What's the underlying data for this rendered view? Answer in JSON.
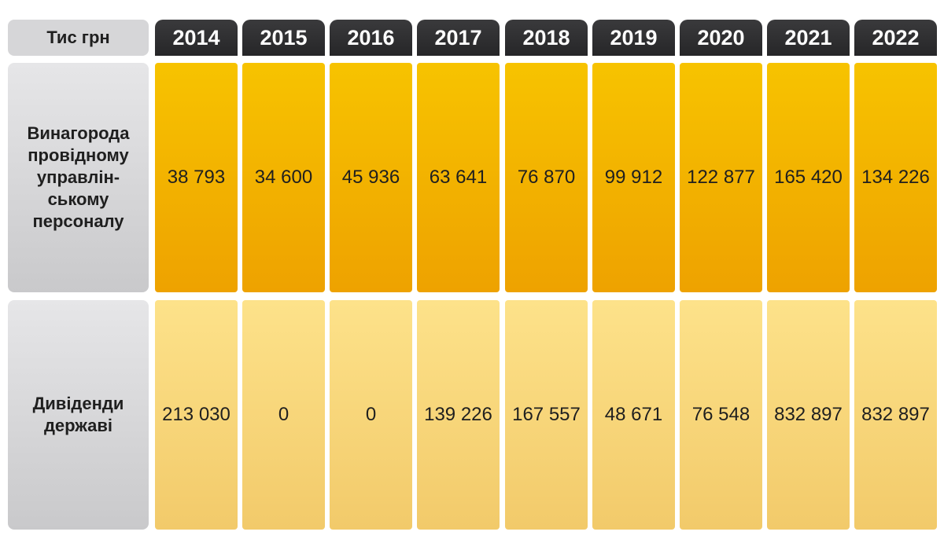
{
  "header_label": "Тис грн",
  "rows": [
    {
      "label_lines": [
        "Винагорода",
        "провідному",
        "управлін-",
        "ському",
        "персоналу"
      ]
    },
    {
      "label_lines": [
        "Дивіденди",
        "державі"
      ]
    }
  ],
  "colors": {
    "header_bg": "#2e2e30",
    "row1_bg": "#f4b400",
    "row2_bg": "#f8d57a",
    "label_bg": "#d6d6d8"
  },
  "chart_data": {
    "type": "table",
    "columns": [
      "2014",
      "2015",
      "2016",
      "2017",
      "2018",
      "2019",
      "2020",
      "2021",
      "2022"
    ],
    "series": [
      {
        "name": "Винагорода провідному управлінському персоналу",
        "values": [
          "38 793",
          "34 600",
          "45 936",
          "63 641",
          "76 870",
          "99 912",
          "122 877",
          "165 420",
          "134 226"
        ]
      },
      {
        "name": "Дивіденди державі",
        "values": [
          "213 030",
          "0",
          "0",
          "139 226",
          "167 557",
          "48 671",
          "76 548",
          "832 897",
          "832 897"
        ]
      }
    ]
  }
}
